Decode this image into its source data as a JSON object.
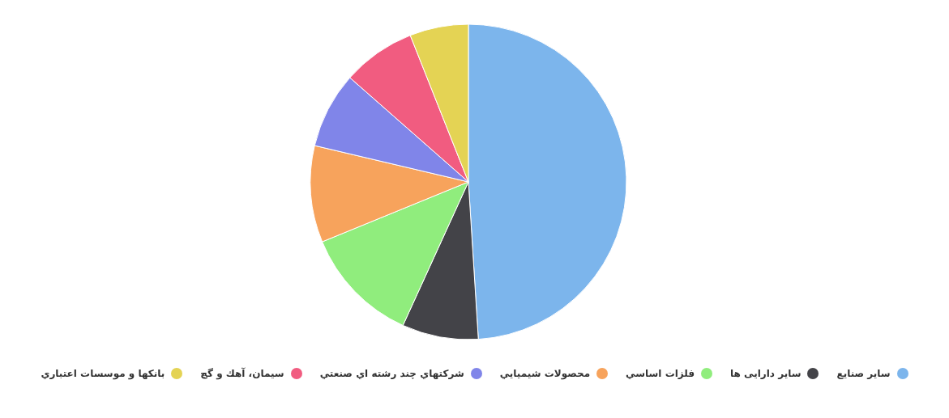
{
  "chart_data": {
    "type": "pie",
    "legend": "bottom",
    "categories": [
      "ساير صنايع",
      "ساير دارايی ها",
      "فلزات اساسي",
      "محصولات شيميايي",
      "شركتهاي چند رشته اي صنعتي",
      "سيمان، آهك و گچ",
      "بانكها و موسسات اعتباري"
    ],
    "values": [
      49,
      7.8,
      12,
      9.9,
      7.8,
      7.5,
      6
    ],
    "colors": [
      "#7cb5ec",
      "#434348",
      "#90ed7d",
      "#f7a35c",
      "#8085e9",
      "#f15c80",
      "#e4d354"
    ]
  }
}
